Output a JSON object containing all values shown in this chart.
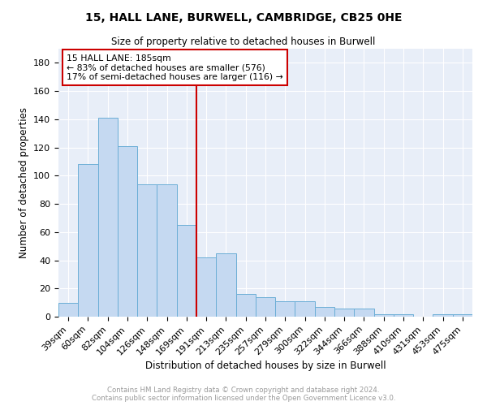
{
  "title": "15, HALL LANE, BURWELL, CAMBRIDGE, CB25 0HE",
  "subtitle": "Size of property relative to detached houses in Burwell",
  "xlabel": "Distribution of detached houses by size in Burwell",
  "ylabel": "Number of detached properties",
  "categories": [
    "39sqm",
    "60sqm",
    "82sqm",
    "104sqm",
    "126sqm",
    "148sqm",
    "169sqm",
    "191sqm",
    "213sqm",
    "235sqm",
    "257sqm",
    "279sqm",
    "300sqm",
    "322sqm",
    "344sqm",
    "366sqm",
    "388sqm",
    "410sqm",
    "431sqm",
    "453sqm",
    "475sqm"
  ],
  "values": [
    10,
    108,
    141,
    121,
    94,
    94,
    65,
    42,
    45,
    16,
    14,
    11,
    11,
    7,
    6,
    6,
    2,
    2,
    0,
    2,
    2
  ],
  "bar_color": "#c5d9f1",
  "bar_edge_color": "#6baed6",
  "reference_line_label": "15 HALL LANE: 185sqm",
  "annotation_line1": "← 83% of detached houses are smaller (576)",
  "annotation_line2": "17% of semi-detached houses are larger (116) →",
  "box_color": "#cc0000",
  "ylim": [
    0,
    190
  ],
  "yticks": [
    0,
    20,
    40,
    60,
    80,
    100,
    120,
    140,
    160,
    180
  ],
  "footer_line1": "Contains HM Land Registry data © Crown copyright and database right 2024.",
  "footer_line2": "Contains public sector information licensed under the Open Government Licence v3.0.",
  "background_color": "#e8eef8",
  "grid_color": "#ffffff",
  "ref_line_bin_index": 6
}
